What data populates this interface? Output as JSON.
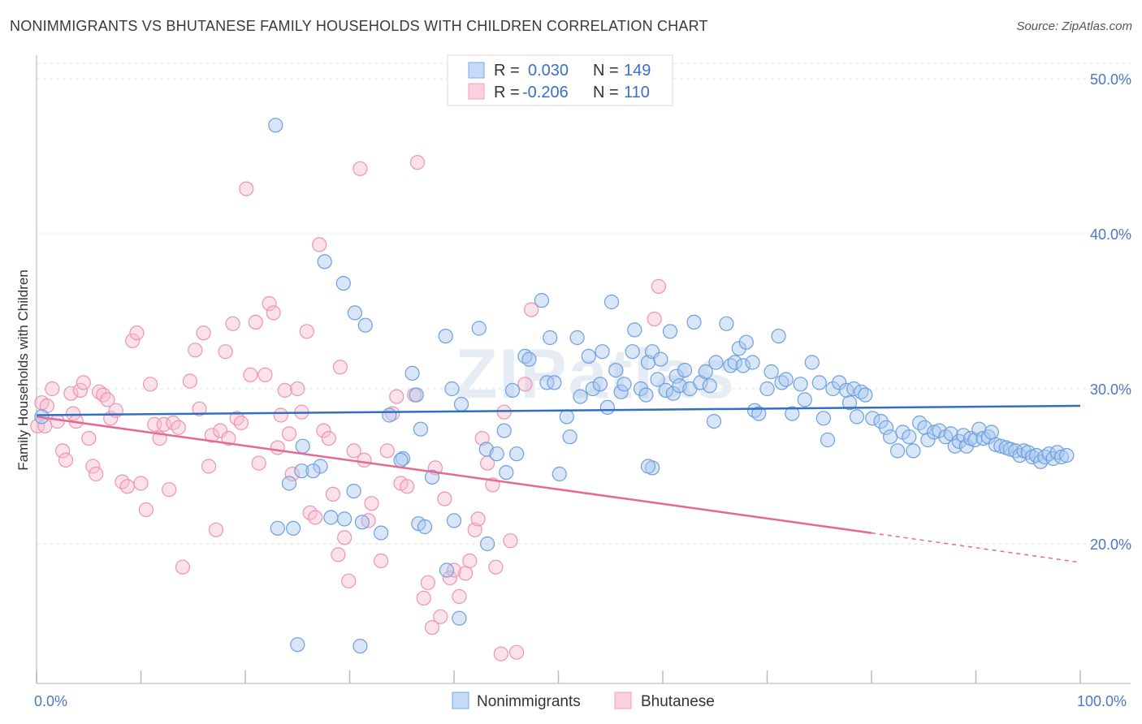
{
  "title": "NONIMMIGRANTS VS BHUTANESE FAMILY HOUSEHOLDS WITH CHILDREN CORRELATION CHART",
  "source": "Source: ZipAtlas.com",
  "watermark": "ZIPatlas",
  "colors": {
    "blue": "#7aaae8",
    "blue_line": "#2f6fc8",
    "pink": "#f2a0ba",
    "pink_line": "#e46a94",
    "axis_text": "#4a78c2"
  },
  "chart_data": {
    "type": "scatter",
    "title": "NONIMMIGRANTS VS BHUTANESE FAMILY HOUSEHOLDS WITH CHILDREN CORRELATION CHART",
    "xlabel": "",
    "ylabel": "Family Households with Children",
    "xlim": [
      0,
      100
    ],
    "ylim": [
      10,
      52
    ],
    "x_tick_labels": [
      "0.0%",
      "100.0%"
    ],
    "y_ticks": [
      20,
      30,
      40,
      50
    ],
    "y_tick_labels": [
      "20.0%",
      "30.0%",
      "40.0%",
      "50.0%"
    ],
    "legend": {
      "position": "top-center",
      "entries": [
        {
          "name": "Nonimmigrants",
          "r_label": "R =",
          "r": "0.030",
          "n_label": "N =",
          "n": "149"
        },
        {
          "name": "Bhutanese",
          "r_label": "R =",
          "r": "-0.206",
          "n_label": "N =",
          "n": "110"
        }
      ]
    },
    "series": [
      {
        "name": "Nonimmigrants",
        "trend": {
          "x": [
            0,
            100
          ],
          "y": [
            28.3,
            28.9
          ],
          "dashed_after": null
        },
        "points": [
          [
            0.5,
            28.2
          ],
          [
            22.9,
            47.0
          ],
          [
            27.6,
            38.2
          ],
          [
            29.4,
            36.8
          ],
          [
            30.5,
            34.9
          ],
          [
            31.5,
            34.1
          ],
          [
            33.8,
            28.3
          ],
          [
            35.1,
            25.5
          ],
          [
            34.9,
            25.4
          ],
          [
            36.0,
            31.0
          ],
          [
            36.4,
            29.6
          ],
          [
            36.8,
            27.4
          ],
          [
            37.9,
            24.3
          ],
          [
            39.2,
            33.4
          ],
          [
            39.8,
            30.0
          ],
          [
            40.7,
            29.0
          ],
          [
            42.4,
            33.9
          ],
          [
            43.1,
            26.1
          ],
          [
            44.1,
            25.8
          ],
          [
            44.8,
            27.3
          ],
          [
            45.0,
            24.6
          ],
          [
            45.6,
            29.9
          ],
          [
            46.0,
            25.8
          ],
          [
            46.8,
            32.1
          ],
          [
            47.2,
            31.9
          ],
          [
            48.4,
            35.7
          ],
          [
            48.9,
            30.4
          ],
          [
            49.2,
            33.3
          ],
          [
            49.6,
            30.4
          ],
          [
            50.1,
            24.5
          ],
          [
            50.8,
            28.2
          ],
          [
            51.1,
            26.9
          ],
          [
            51.8,
            33.3
          ],
          [
            52.1,
            29.5
          ],
          [
            52.9,
            32.1
          ],
          [
            53.3,
            30.0
          ],
          [
            54.0,
            30.3
          ],
          [
            54.2,
            32.4
          ],
          [
            54.7,
            28.8
          ],
          [
            55.1,
            35.6
          ],
          [
            55.5,
            31.2
          ],
          [
            56.0,
            29.8
          ],
          [
            56.3,
            30.3
          ],
          [
            57.1,
            32.4
          ],
          [
            57.3,
            33.8
          ],
          [
            57.9,
            30.0
          ],
          [
            58.4,
            29.6
          ],
          [
            58.6,
            31.7
          ],
          [
            59.0,
            32.4
          ],
          [
            59.5,
            30.6
          ],
          [
            59.8,
            31.9
          ],
          [
            60.3,
            29.9
          ],
          [
            60.7,
            33.7
          ],
          [
            61.0,
            29.7
          ],
          [
            61.3,
            30.8
          ],
          [
            61.6,
            30.2
          ],
          [
            62.1,
            31.2
          ],
          [
            62.6,
            30.0
          ],
          [
            63.0,
            34.3
          ],
          [
            63.6,
            30.4
          ],
          [
            64.1,
            31.1
          ],
          [
            64.5,
            30.2
          ],
          [
            64.9,
            27.9
          ],
          [
            65.1,
            31.7
          ],
          [
            66.1,
            34.2
          ],
          [
            66.5,
            31.5
          ],
          [
            66.9,
            31.7
          ],
          [
            67.3,
            32.6
          ],
          [
            67.7,
            31.5
          ],
          [
            68.0,
            33.0
          ],
          [
            68.6,
            31.7
          ],
          [
            68.8,
            28.6
          ],
          [
            69.2,
            28.4
          ],
          [
            70.0,
            30.0
          ],
          [
            70.4,
            31.1
          ],
          [
            71.1,
            33.4
          ],
          [
            71.4,
            30.4
          ],
          [
            71.8,
            30.6
          ],
          [
            72.4,
            28.4
          ],
          [
            73.2,
            30.3
          ],
          [
            73.6,
            29.3
          ],
          [
            74.3,
            31.7
          ],
          [
            75.0,
            30.4
          ],
          [
            75.4,
            28.1
          ],
          [
            75.8,
            26.7
          ],
          [
            76.3,
            30.0
          ],
          [
            76.9,
            30.4
          ],
          [
            77.6,
            29.9
          ],
          [
            77.9,
            29.1
          ],
          [
            78.3,
            30.0
          ],
          [
            78.6,
            28.2
          ],
          [
            79.0,
            29.8
          ],
          [
            79.4,
            29.6
          ],
          [
            80.1,
            28.1
          ],
          [
            80.9,
            27.9
          ],
          [
            81.4,
            27.5
          ],
          [
            81.8,
            26.9
          ],
          [
            82.5,
            26.0
          ],
          [
            83.0,
            27.2
          ],
          [
            83.6,
            26.9
          ],
          [
            84.0,
            26.0
          ],
          [
            84.6,
            27.8
          ],
          [
            85.1,
            27.5
          ],
          [
            85.4,
            26.7
          ],
          [
            86.0,
            27.2
          ],
          [
            86.5,
            27.3
          ],
          [
            87.1,
            26.9
          ],
          [
            87.6,
            27.1
          ],
          [
            88.0,
            26.3
          ],
          [
            88.4,
            26.6
          ],
          [
            88.8,
            27.0
          ],
          [
            89.1,
            26.3
          ],
          [
            89.5,
            26.8
          ],
          [
            89.9,
            26.7
          ],
          [
            90.3,
            27.4
          ],
          [
            90.7,
            26.8
          ],
          [
            91.2,
            26.9
          ],
          [
            91.5,
            27.2
          ],
          [
            91.9,
            26.4
          ],
          [
            92.4,
            26.3
          ],
          [
            92.9,
            26.2
          ],
          [
            93.3,
            26.1
          ],
          [
            93.8,
            26.0
          ],
          [
            94.2,
            25.7
          ],
          [
            94.6,
            26.0
          ],
          [
            95.0,
            25.9
          ],
          [
            95.4,
            25.6
          ],
          [
            95.8,
            25.7
          ],
          [
            96.2,
            25.3
          ],
          [
            96.6,
            25.6
          ],
          [
            97.0,
            25.8
          ],
          [
            97.4,
            25.5
          ],
          [
            97.8,
            25.9
          ],
          [
            98.2,
            25.6
          ],
          [
            98.7,
            25.7
          ],
          [
            25.5,
            26.3
          ],
          [
            25.4,
            24.7
          ],
          [
            24.2,
            23.9
          ],
          [
            27.2,
            25.0
          ],
          [
            28.2,
            21.7
          ],
          [
            29.5,
            21.6
          ],
          [
            30.4,
            23.4
          ],
          [
            31.2,
            21.4
          ],
          [
            33.0,
            20.7
          ],
          [
            36.6,
            21.3
          ],
          [
            37.2,
            21.1
          ],
          [
            39.3,
            18.3
          ],
          [
            40.0,
            21.5
          ],
          [
            43.2,
            20.0
          ],
          [
            23.1,
            21.0
          ],
          [
            24.6,
            21.0
          ],
          [
            26.5,
            24.7
          ],
          [
            31.0,
            13.4
          ],
          [
            40.5,
            15.2
          ],
          [
            25.0,
            13.5
          ],
          [
            59.0,
            24.9
          ],
          [
            58.6,
            25.0
          ]
        ]
      },
      {
        "name": "Bhutanese",
        "trend": {
          "x": [
            0,
            80
          ],
          "y": [
            28.2,
            20.7
          ],
          "dashed_to": [
            100,
            18.8
          ]
        },
        "points": [
          [
            0.1,
            27.6
          ],
          [
            0.5,
            29.1
          ],
          [
            1.0,
            28.9
          ],
          [
            1.5,
            30.0
          ],
          [
            2.0,
            27.9
          ],
          [
            2.5,
            26.0
          ],
          [
            2.8,
            25.4
          ],
          [
            3.3,
            29.7
          ],
          [
            3.5,
            28.4
          ],
          [
            3.8,
            27.9
          ],
          [
            4.2,
            29.9
          ],
          [
            4.5,
            30.4
          ],
          [
            5.0,
            26.8
          ],
          [
            5.4,
            25.0
          ],
          [
            5.7,
            24.5
          ],
          [
            6.0,
            29.8
          ],
          [
            6.4,
            29.6
          ],
          [
            6.8,
            29.3
          ],
          [
            7.1,
            28.1
          ],
          [
            7.6,
            28.6
          ],
          [
            8.2,
            24.0
          ],
          [
            8.7,
            23.7
          ],
          [
            9.2,
            33.1
          ],
          [
            9.6,
            33.6
          ],
          [
            10.0,
            23.9
          ],
          [
            10.5,
            22.2
          ],
          [
            10.9,
            30.3
          ],
          [
            11.3,
            27.7
          ],
          [
            11.8,
            26.8
          ],
          [
            12.2,
            27.7
          ],
          [
            12.7,
            23.5
          ],
          [
            13.1,
            27.8
          ],
          [
            13.6,
            27.5
          ],
          [
            14.0,
            18.5
          ],
          [
            14.7,
            30.5
          ],
          [
            15.2,
            32.5
          ],
          [
            15.6,
            28.7
          ],
          [
            16.0,
            33.6
          ],
          [
            16.5,
            25.0
          ],
          [
            16.8,
            27.0
          ],
          [
            17.2,
            20.9
          ],
          [
            17.6,
            27.3
          ],
          [
            18.1,
            32.4
          ],
          [
            18.4,
            26.8
          ],
          [
            18.8,
            34.2
          ],
          [
            19.2,
            28.1
          ],
          [
            19.6,
            27.8
          ],
          [
            20.1,
            42.9
          ],
          [
            20.5,
            30.9
          ],
          [
            21.0,
            34.3
          ],
          [
            21.3,
            25.2
          ],
          [
            21.9,
            30.9
          ],
          [
            22.3,
            35.5
          ],
          [
            22.7,
            34.9
          ],
          [
            23.1,
            26.2
          ],
          [
            23.4,
            28.3
          ],
          [
            23.8,
            29.9
          ],
          [
            24.2,
            27.1
          ],
          [
            24.5,
            24.5
          ],
          [
            25.0,
            30.0
          ],
          [
            25.4,
            28.5
          ],
          [
            25.9,
            33.7
          ],
          [
            26.2,
            22.0
          ],
          [
            26.7,
            21.7
          ],
          [
            27.1,
            39.3
          ],
          [
            27.5,
            27.3
          ],
          [
            28.0,
            26.8
          ],
          [
            28.4,
            23.2
          ],
          [
            28.9,
            19.3
          ],
          [
            29.1,
            31.4
          ],
          [
            29.5,
            20.4
          ],
          [
            29.9,
            17.6
          ],
          [
            30.4,
            26.0
          ],
          [
            31.0,
            44.2
          ],
          [
            31.4,
            25.4
          ],
          [
            31.8,
            21.5
          ],
          [
            32.1,
            22.6
          ],
          [
            33.0,
            18.9
          ],
          [
            33.6,
            26.0
          ],
          [
            34.1,
            28.4
          ],
          [
            34.5,
            29.5
          ],
          [
            34.9,
            23.9
          ],
          [
            35.5,
            23.7
          ],
          [
            36.2,
            29.6
          ],
          [
            36.5,
            44.6
          ],
          [
            37.1,
            16.5
          ],
          [
            37.5,
            17.5
          ],
          [
            37.9,
            14.6
          ],
          [
            38.2,
            24.9
          ],
          [
            38.7,
            15.3
          ],
          [
            39.1,
            22.9
          ],
          [
            39.6,
            17.8
          ],
          [
            40.0,
            18.3
          ],
          [
            40.5,
            16.6
          ],
          [
            41.1,
            18.1
          ],
          [
            41.5,
            18.9
          ],
          [
            42.0,
            20.9
          ],
          [
            42.3,
            21.6
          ],
          [
            42.7,
            26.8
          ],
          [
            43.2,
            25.2
          ],
          [
            43.7,
            23.8
          ],
          [
            44.0,
            18.5
          ],
          [
            44.5,
            12.9
          ],
          [
            44.8,
            28.5
          ],
          [
            45.4,
            20.2
          ],
          [
            46.0,
            13.0
          ],
          [
            46.8,
            30.3
          ],
          [
            47.4,
            35.1
          ],
          [
            59.2,
            34.5
          ],
          [
            59.6,
            36.6
          ],
          [
            0.8,
            27.6
          ]
        ]
      }
    ]
  },
  "axis": {
    "x_left_label": "0.0%",
    "x_right_label": "100.0%"
  }
}
